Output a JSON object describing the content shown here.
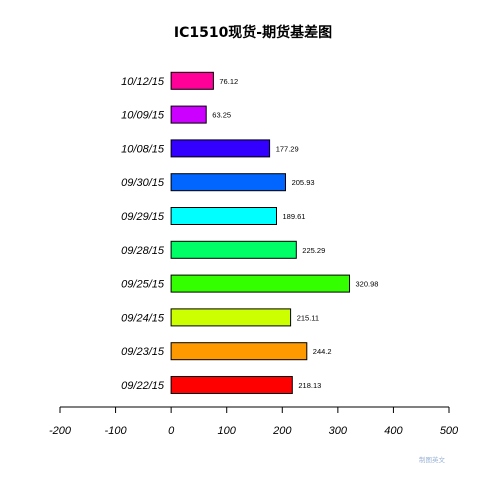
{
  "chart_data": {
    "type": "bar",
    "orientation": "horizontal",
    "title": "IC1510现货-期货基差图",
    "categories": [
      "09/22/15",
      "09/23/15",
      "09/24/15",
      "09/25/15",
      "09/28/15",
      "09/29/15",
      "09/30/15",
      "10/08/15",
      "10/09/15",
      "10/12/15"
    ],
    "values": [
      218.13,
      244.2,
      215.11,
      320.98,
      225.29,
      189.61,
      205.93,
      177.29,
      63.25,
      76.12
    ],
    "value_labels": [
      "218.13",
      "244.2",
      "215.11",
      "320.98",
      "225.29",
      "189.61",
      "205.93",
      "177.29",
      "63.25",
      "76.12"
    ],
    "colors": [
      "#ff0000",
      "#ff9900",
      "#ccff00",
      "#33ff00",
      "#00ff66",
      "#00ffff",
      "#0066ff",
      "#3300ff",
      "#cc00ff",
      "#ff0099"
    ],
    "xlim": [
      -200,
      500
    ],
    "xticks": [
      -200,
      -100,
      0,
      100,
      200,
      300,
      400,
      500
    ],
    "xtick_labels": [
      "-200",
      "-100",
      "0",
      "100",
      "200",
      "300",
      "400",
      "500"
    ],
    "xlabel": "",
    "ylabel": "",
    "grid": false,
    "legend": "none"
  },
  "watermark": "制图英文"
}
